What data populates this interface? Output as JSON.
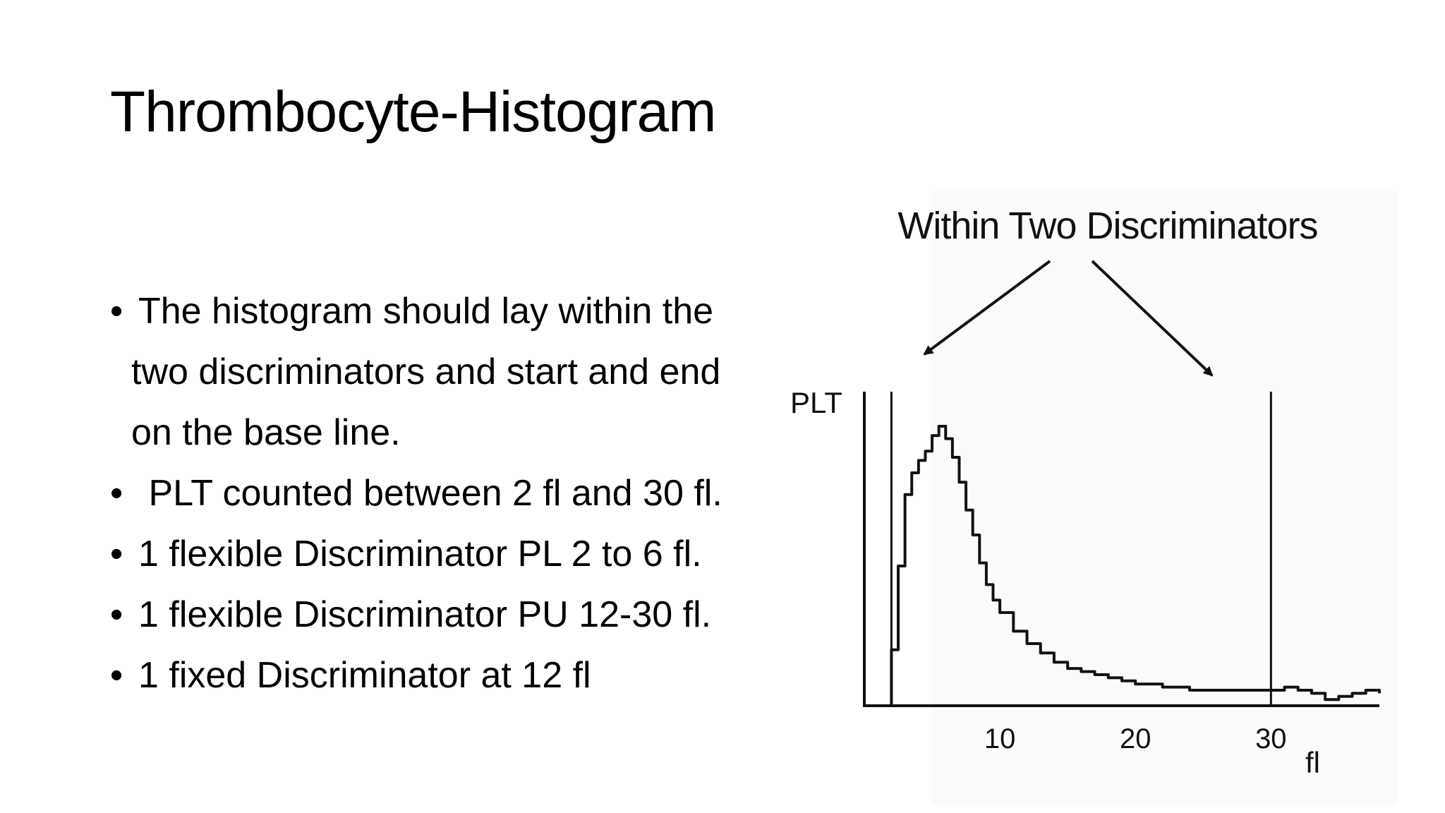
{
  "slide": {
    "title": "Thrombocyte-Histogram",
    "bullets": [
      {
        "lines": [
          "The histogram should lay within the",
          "two discriminators and start and end",
          "on the base line."
        ]
      },
      {
        "lines": [
          " PLT counted between 2 fl and 30 fl."
        ]
      },
      {
        "lines": [
          "1 flexible Discriminator PL 2 to 6 fl."
        ]
      },
      {
        "lines": [
          "1 flexible Discriminator PU 12-30 fl."
        ]
      },
      {
        "lines": [
          "1 fixed Discriminator at 12 fl"
        ]
      }
    ],
    "bullet_symbol": "•"
  },
  "figure": {
    "caption": "Within Two Discriminators",
    "ylabel": "PLT",
    "xlabel": "fl",
    "x_ticks": [
      "10",
      "20",
      "30"
    ],
    "discriminators": [
      2,
      30
    ]
  },
  "chart_data": {
    "type": "line",
    "title": "Within Two Discriminators",
    "xlabel": "fl",
    "ylabel": "PLT",
    "xlim": [
      0,
      38
    ],
    "ylim": [
      0,
      100
    ],
    "x_ticks": [
      10,
      20,
      30
    ],
    "grid": false,
    "series": [
      {
        "x": [
          1.5,
          2.0,
          2.5,
          3.0,
          3.5,
          4.0,
          4.5,
          5.0,
          5.5,
          6.0,
          6.5,
          7.0,
          7.5,
          8.0,
          8.5,
          9.0,
          9.5,
          10.0,
          11.0,
          12.0,
          13.0,
          14.0,
          15.0,
          16.0,
          17.0,
          18.0,
          19.0,
          20.0,
          22.0,
          24.0,
          26.0,
          28.0,
          29.5,
          30.0,
          31.0,
          32.0,
          33.0,
          34.0,
          35.0,
          36.0,
          37.0,
          38.0
        ],
        "y": [
          0,
          18,
          45,
          68,
          75,
          79,
          82,
          87,
          90,
          86,
          80,
          72,
          63,
          55,
          46,
          39,
          34,
          30,
          24,
          20,
          17,
          14,
          12,
          11,
          10,
          9,
          8,
          7,
          6,
          5,
          5,
          5,
          5,
          5,
          6,
          5,
          4,
          2,
          3,
          4,
          5,
          4
        ]
      }
    ]
  }
}
